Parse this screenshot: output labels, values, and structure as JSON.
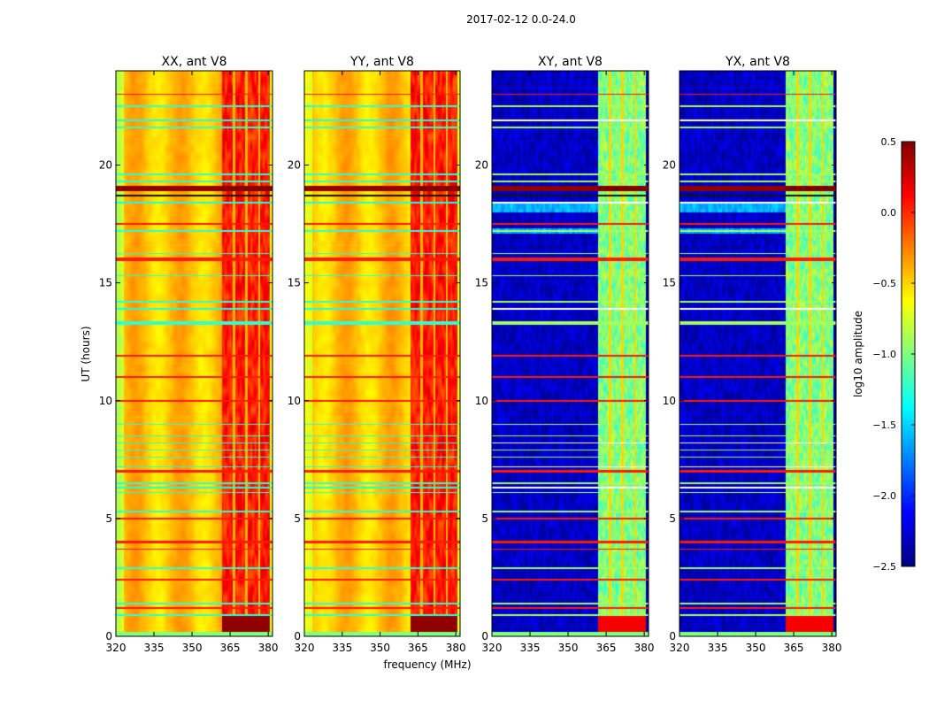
{
  "chart_data": {
    "type": "heatmap",
    "title": "2017-02-12 0.0-24.0",
    "xlabel": "frequency (MHz)",
    "ylabel": "UT (hours)",
    "xlim": [
      320,
      381.7
    ],
    "ylim": [
      0,
      24
    ],
    "xticks": [
      "320",
      "335",
      "350",
      "365",
      "380"
    ],
    "xtick_values": [
      320,
      335,
      350,
      365,
      380
    ],
    "yticks": [
      "0",
      "5",
      "10",
      "15",
      "20"
    ],
    "ytick_values": [
      0,
      5,
      10,
      15,
      20
    ],
    "panels": [
      {
        "title": "XX, ant V8",
        "kind": "auto"
      },
      {
        "title": "YY, ant V8",
        "kind": "auto"
      },
      {
        "title": "XY, ant V8",
        "kind": "cross"
      },
      {
        "title": "YX, ant V8",
        "kind": "cross"
      }
    ],
    "colormap": "jet",
    "colorbar": {
      "label": "log10 amplitude",
      "vmin": -2.5,
      "vmax": 0.5,
      "ticks": [
        "0.5",
        "0.0",
        "−0.5",
        "−1.0",
        "−1.5",
        "−2.0",
        "−2.5"
      ],
      "tick_values": [
        0.5,
        0.0,
        -0.5,
        -1.0,
        -1.5,
        -2.0,
        -2.5
      ]
    },
    "signal_band_mhz": [
      362,
      380.5
    ],
    "band_gaps_mhz": [
      366.5,
      371.5,
      376.5
    ],
    "levels": {
      "auto_background": -0.45,
      "auto_band": 0.05,
      "cross_background": -2.3,
      "cross_band": -1.0
    },
    "rfi_lines": [
      {
        "ut": 23.0,
        "type": "rfi"
      },
      {
        "ut": 22.5,
        "type": "low"
      },
      {
        "ut": 21.9,
        "type": "flag"
      },
      {
        "ut": 21.6,
        "type": "low"
      },
      {
        "ut": 19.6,
        "type": "low"
      },
      {
        "ut": 19.3,
        "type": "low"
      },
      {
        "ut": 19.0,
        "type": "strong",
        "width": 0.25
      },
      {
        "ut": 18.7,
        "type": "black"
      },
      {
        "ut": 18.4,
        "type": "flag"
      },
      {
        "ut": 17.5,
        "type": "rfi"
      },
      {
        "ut": 17.2,
        "type": "low"
      },
      {
        "ut": 16.25,
        "type": "low"
      },
      {
        "ut": 16.0,
        "type": "rfi",
        "width": 0.12
      },
      {
        "ut": 15.3,
        "type": "low"
      },
      {
        "ut": 14.2,
        "type": "low"
      },
      {
        "ut": 13.9,
        "type": "flag"
      },
      {
        "ut": 13.3,
        "type": "low",
        "width": 0.15
      },
      {
        "ut": 11.9,
        "type": "rfi"
      },
      {
        "ut": 11.0,
        "type": "rfi"
      },
      {
        "ut": 10.0,
        "type": "rfi"
      },
      {
        "ut": 9.0,
        "type": "low"
      },
      {
        "ut": 8.5,
        "type": "low"
      },
      {
        "ut": 8.2,
        "type": "flag"
      },
      {
        "ut": 7.9,
        "type": "low"
      },
      {
        "ut": 7.6,
        "type": "low"
      },
      {
        "ut": 7.2,
        "type": "flag"
      },
      {
        "ut": 7.0,
        "type": "rfi",
        "width": 0.12
      },
      {
        "ut": 6.5,
        "type": "low"
      },
      {
        "ut": 6.3,
        "type": "flag"
      },
      {
        "ut": 6.1,
        "type": "low"
      },
      {
        "ut": 5.3,
        "type": "low"
      },
      {
        "ut": 5.0,
        "type": "rfi"
      },
      {
        "ut": 4.0,
        "type": "rfi",
        "width": 0.15
      },
      {
        "ut": 3.7,
        "type": "rfi"
      },
      {
        "ut": 2.9,
        "type": "low"
      },
      {
        "ut": 2.4,
        "type": "rfi"
      },
      {
        "ut": 1.4,
        "type": "low"
      },
      {
        "ut": 1.2,
        "type": "rfi"
      },
      {
        "ut": 0.9,
        "type": "low"
      }
    ]
  }
}
